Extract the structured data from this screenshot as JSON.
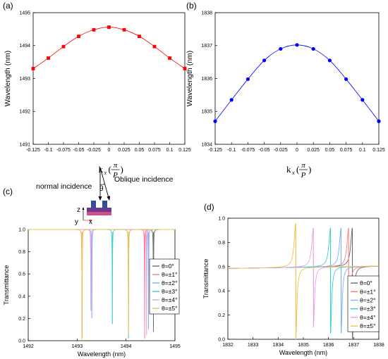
{
  "panel_labels": {
    "a": "(a)",
    "b": "(b)",
    "c": "(c)",
    "d": "(d)"
  },
  "schematic": {
    "normal_label": "normal incidence",
    "oblique_label": "Oblique incidence",
    "theta_label": "θ",
    "axis_z": "z",
    "axis_y": "y",
    "axis_x": "x"
  },
  "chart_data": [
    {
      "id": "a",
      "type": "line",
      "title": "",
      "xlabel_main": "k",
      "xlabel_sub": "x",
      "xlabel_num": "π",
      "xlabel_den": "P",
      "ylabel": "Wavelength (nm)",
      "x": [
        -0.125,
        -0.1,
        -0.075,
        -0.05,
        -0.025,
        0,
        0.025,
        0.05,
        0.075,
        0.1,
        0.125
      ],
      "series": [
        {
          "color": "#ff0000",
          "marker": "square",
          "values": [
            1493.3,
            1493.62,
            1493.97,
            1494.28,
            1494.48,
            1494.56,
            1494.48,
            1494.28,
            1493.97,
            1493.62,
            1493.3
          ]
        }
      ],
      "xlim": [
        -0.125,
        0.125
      ],
      "ylim": [
        1491,
        1495
      ],
      "xticks": [
        -0.125,
        -0.1,
        -0.075,
        -0.05,
        -0.025,
        0,
        0.025,
        0.05,
        0.075,
        0.1,
        0.125
      ],
      "xtick_labels": [
        "-0.125",
        "-0.1",
        "-0.075",
        "-0.05",
        "-0.025",
        "0",
        "0.025",
        "0.05",
        "0.075",
        "0.1",
        "0.125"
      ],
      "yticks": [
        1491,
        1492,
        1493,
        1494,
        1495
      ],
      "ytick_labels": [
        "1491",
        "1492",
        "1493",
        "1494",
        "1495"
      ],
      "grid": false
    },
    {
      "id": "b",
      "type": "line",
      "title": "",
      "xlabel_main": "k",
      "xlabel_sub": "x",
      "xlabel_num": "π",
      "xlabel_den": "P",
      "ylabel": "Wavelength (nm)",
      "x": [
        -0.125,
        -0.1,
        -0.075,
        -0.05,
        -0.025,
        0,
        0.025,
        0.05,
        0.075,
        0.1,
        0.125
      ],
      "series": [
        {
          "color": "#0000ff",
          "marker": "circle",
          "values": [
            1834.7,
            1835.35,
            1835.98,
            1836.55,
            1836.9,
            1837.02,
            1836.9,
            1836.55,
            1835.98,
            1835.35,
            1834.7
          ]
        }
      ],
      "xlim": [
        -0.125,
        0.125
      ],
      "ylim": [
        1834,
        1838
      ],
      "xticks": [
        -0.125,
        -0.1,
        -0.075,
        -0.05,
        -0.025,
        0,
        0.025,
        0.05,
        0.075,
        0.1,
        0.125
      ],
      "xtick_labels": [
        "-0.125",
        "-0.1",
        "-0.075",
        "-0.05",
        "-0.025",
        "0",
        "0.025",
        "0.05",
        "0.075",
        "0.1",
        "0.125"
      ],
      "yticks": [
        1834,
        1835,
        1836,
        1837,
        1838
      ],
      "ytick_labels": [
        "1834",
        "1835",
        "1836",
        "1837",
        "1838"
      ],
      "grid": false
    },
    {
      "id": "c",
      "type": "line",
      "title": "",
      "xlabel": "Wavelength (nm)",
      "ylabel": "Transmittance",
      "xlim": [
        1492,
        1495
      ],
      "ylim": [
        0,
        1.0
      ],
      "xticks": [
        1492,
        1493,
        1494,
        1495
      ],
      "xtick_labels": [
        "1492",
        "1493",
        "1494",
        "1495"
      ],
      "yticks": [
        0,
        0.2,
        0.4,
        0.6,
        0.8,
        1.0
      ],
      "ytick_labels": [
        "0.0",
        "0.2",
        "0.4",
        "0.6",
        "0.8",
        "1.0"
      ],
      "legend_position": "right",
      "grid": false,
      "lineshape": "lorentzian_dip",
      "baseline": 1.0,
      "series": [
        {
          "name": "θ=0°",
          "color": "#6b6b6b",
          "dips": [
            {
              "center": 1494.56,
              "min": 0.08
            }
          ]
        },
        {
          "name": "θ=±1°",
          "color": "#ff8080",
          "dips": [
            {
              "center": 1493.1,
              "min": 0.03
            },
            {
              "center": 1494.38,
              "min": 0.02
            }
          ]
        },
        {
          "name": "θ=±2°",
          "color": "#7ab0ff",
          "dips": [
            {
              "center": 1493.3,
              "min": 0.2
            },
            {
              "center": 1494.46,
              "min": 0.1
            }
          ]
        },
        {
          "name": "θ=±3°",
          "color": "#3fcfcf",
          "dips": [
            {
              "center": 1493.72,
              "min": 0.15
            },
            {
              "center": 1494.05,
              "min": 0.02
            }
          ]
        },
        {
          "name": "θ=±4°",
          "color": "#e8a0e8",
          "dips": [
            {
              "center": 1493.28,
              "min": 0.27
            },
            {
              "center": 1494.42,
              "min": 0.05
            }
          ]
        },
        {
          "name": "θ=±5°",
          "color": "#f0c050",
          "dips": [
            {
              "center": 1493.1,
              "min": 0.0
            },
            {
              "center": 1494.05,
              "min": 0.05
            }
          ]
        }
      ]
    },
    {
      "id": "d",
      "type": "line",
      "title": "",
      "xlabel": "Wavelength (nm)",
      "ylabel": "Transmittance",
      "xlim": [
        1832,
        1838
      ],
      "ylim": [
        0,
        1.0
      ],
      "xticks": [
        1832,
        1833,
        1834,
        1835,
        1836,
        1837,
        1838
      ],
      "xtick_labels": [
        "1832",
        "1833",
        "1834",
        "1835",
        "1836",
        "1837",
        "1838"
      ],
      "yticks": [
        0,
        0.2,
        0.4,
        0.6,
        0.8,
        1.0
      ],
      "ytick_labels": [
        "0.0",
        "0.2",
        "0.4",
        "0.6",
        "0.8",
        "1.0"
      ],
      "legend_position": "right",
      "grid": false,
      "lineshape": "fano",
      "baseline_start": 0.585,
      "baseline_end": 0.605,
      "series": [
        {
          "name": "θ=0°",
          "color": "#6b6b6b",
          "resonances": [
            {
              "center": 1836.95,
              "peak": 0.92,
              "dip": 0.0
            }
          ]
        },
        {
          "name": "θ=±1°",
          "color": "#ff8080",
          "resonances": [
            {
              "center": 1836.8,
              "peak": 0.92,
              "dip": 0.07
            }
          ]
        },
        {
          "name": "θ=±2°",
          "color": "#7ab0ff",
          "resonances": [
            {
              "center": 1836.5,
              "peak": 0.92,
              "dip": 0.05
            }
          ]
        },
        {
          "name": "θ=±3°",
          "color": "#3fcfcf",
          "resonances": [
            {
              "center": 1836.08,
              "peak": 0.92,
              "dip": 0.05
            }
          ]
        },
        {
          "name": "θ=±4°",
          "color": "#e8a0e8",
          "resonances": [
            {
              "center": 1835.4,
              "peak": 0.92,
              "dip": 0.1
            }
          ]
        },
        {
          "name": "θ=±5°",
          "color": "#f0c050",
          "resonances": [
            {
              "center": 1834.7,
              "peak": 0.96,
              "dip": 0.0
            }
          ]
        }
      ]
    }
  ]
}
